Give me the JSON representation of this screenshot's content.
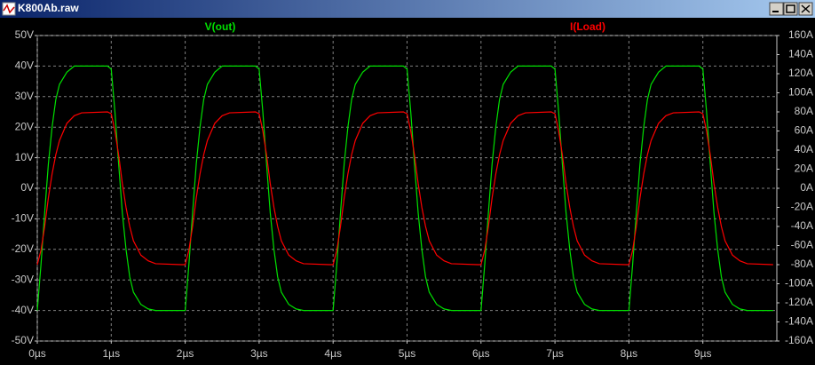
{
  "window": {
    "title": "K800Ab.raw"
  },
  "chart_data": {
    "type": "line",
    "x": [
      0,
      0.05,
      0.1,
      0.15,
      0.2,
      0.25,
      0.3,
      0.4,
      0.5,
      0.6,
      0.95,
      1,
      1.05,
      1.1,
      1.15,
      1.2,
      1.25,
      1.3,
      1.4,
      1.5,
      1.6,
      1.95,
      2,
      2.05,
      2.1,
      2.15,
      2.2,
      2.25,
      2.3,
      2.4,
      2.5,
      2.6,
      2.95,
      3,
      3.05,
      3.1,
      3.15,
      3.2,
      3.25,
      3.3,
      3.4,
      3.5,
      3.6,
      3.95,
      4,
      4.05,
      4.1,
      4.15,
      4.2,
      4.25,
      4.3,
      4.4,
      4.5,
      4.6,
      4.95,
      5,
      5.05,
      5.1,
      5.15,
      5.2,
      5.25,
      5.3,
      5.4,
      5.5,
      5.6,
      5.95,
      6,
      6.05,
      6.1,
      6.15,
      6.2,
      6.25,
      6.3,
      6.4,
      6.5,
      6.6,
      6.95,
      7,
      7.05,
      7.1,
      7.15,
      7.2,
      7.25,
      7.3,
      7.4,
      7.5,
      7.6,
      7.95,
      8,
      8.05,
      8.1,
      8.15,
      8.2,
      8.25,
      8.3,
      8.4,
      8.5,
      8.6,
      8.95,
      9,
      9.05,
      9.1,
      9.15,
      9.2,
      9.25,
      9.3,
      9.4,
      9.5,
      9.6,
      9.95
    ],
    "series": [
      {
        "name": "V(out)",
        "color": "#00e000",
        "axis": "y",
        "values": [
          -40,
          -25,
          -8,
          8,
          20,
          29,
          34,
          38,
          40,
          40,
          40,
          39,
          25,
          8,
          -8,
          -20,
          -29,
          -34,
          -38,
          -39.5,
          -40,
          -40,
          -40,
          -25,
          -8,
          8,
          20,
          29,
          34,
          38,
          40,
          40,
          40,
          39,
          25,
          8,
          -8,
          -20,
          -29,
          -34,
          -38,
          -39.5,
          -40,
          -40,
          -40,
          -25,
          -8,
          8,
          20,
          29,
          34,
          38,
          40,
          40,
          40,
          39,
          25,
          8,
          -8,
          -20,
          -29,
          -34,
          -38,
          -39.5,
          -40,
          -40,
          -40,
          -25,
          -8,
          8,
          20,
          29,
          34,
          38,
          40,
          40,
          40,
          39,
          25,
          8,
          -8,
          -20,
          -29,
          -34,
          -38,
          -39.5,
          -40,
          -40,
          -40,
          -25,
          -8,
          8,
          20,
          29,
          34,
          38,
          40,
          40,
          40,
          39,
          25,
          8,
          -8,
          -20,
          -29,
          -34,
          -38,
          -39.5,
          -40,
          -40
        ]
      },
      {
        "name": "I(Load)",
        "color": "#ff0000",
        "axis": "y2",
        "values": [
          -80,
          -65,
          -40,
          -10,
          15,
          35,
          50,
          68,
          76,
          79,
          80,
          78,
          60,
          35,
          5,
          -20,
          -40,
          -55,
          -70,
          -76,
          -79,
          -80,
          -80,
          -65,
          -40,
          -10,
          15,
          35,
          50,
          68,
          76,
          79,
          80,
          78,
          60,
          35,
          5,
          -20,
          -40,
          -55,
          -70,
          -76,
          -79,
          -80,
          -80,
          -65,
          -40,
          -10,
          15,
          35,
          50,
          68,
          76,
          79,
          80,
          78,
          60,
          35,
          5,
          -20,
          -40,
          -55,
          -70,
          -76,
          -79,
          -80,
          -80,
          -65,
          -40,
          -10,
          15,
          35,
          50,
          68,
          76,
          79,
          80,
          78,
          60,
          35,
          5,
          -20,
          -40,
          -55,
          -70,
          -76,
          -79,
          -80,
          -80,
          -65,
          -40,
          -10,
          15,
          35,
          50,
          68,
          76,
          79,
          80,
          78,
          60,
          35,
          5,
          -20,
          -40,
          -55,
          -70,
          -76,
          -79,
          -80
        ]
      }
    ],
    "xlim": [
      0,
      10
    ],
    "xticks": [
      {
        "value": 0,
        "label": "0µs"
      },
      {
        "value": 1,
        "label": "1µs"
      },
      {
        "value": 2,
        "label": "2µs"
      },
      {
        "value": 3,
        "label": "3µs"
      },
      {
        "value": 4,
        "label": "4µs"
      },
      {
        "value": 5,
        "label": "5µs"
      },
      {
        "value": 6,
        "label": "6µs"
      },
      {
        "value": 7,
        "label": "7µs"
      },
      {
        "value": 8,
        "label": "8µs"
      },
      {
        "value": 9,
        "label": "9µs"
      }
    ],
    "ylim": [
      -50,
      50
    ],
    "yticks": [
      {
        "value": 50,
        "label": "50V"
      },
      {
        "value": 40,
        "label": "40V"
      },
      {
        "value": 30,
        "label": "30V"
      },
      {
        "value": 20,
        "label": "20V"
      },
      {
        "value": 10,
        "label": "10V"
      },
      {
        "value": 0,
        "label": "0V"
      },
      {
        "value": -10,
        "label": "-10V"
      },
      {
        "value": -20,
        "label": "-20V"
      },
      {
        "value": -30,
        "label": "-30V"
      },
      {
        "value": -40,
        "label": "-40V"
      },
      {
        "value": -50,
        "label": "-50V"
      }
    ],
    "y2lim": [
      -160,
      160
    ],
    "y2ticks": [
      {
        "value": 160,
        "label": "160A"
      },
      {
        "value": 140,
        "label": "140A"
      },
      {
        "value": 120,
        "label": "120A"
      },
      {
        "value": 100,
        "label": "100A"
      },
      {
        "value": 80,
        "label": "80A"
      },
      {
        "value": 60,
        "label": "60A"
      },
      {
        "value": 40,
        "label": "40A"
      },
      {
        "value": 20,
        "label": "20A"
      },
      {
        "value": 0,
        "label": "0A"
      },
      {
        "value": -20,
        "label": "-20A"
      },
      {
        "value": -40,
        "label": "-40A"
      },
      {
        "value": -60,
        "label": "-60A"
      },
      {
        "value": -80,
        "label": "-80A"
      },
      {
        "value": -100,
        "label": "-100A"
      },
      {
        "value": -120,
        "label": "-120A"
      },
      {
        "value": -140,
        "label": "-140A"
      },
      {
        "value": -160,
        "label": "-160A"
      }
    ],
    "grid": true
  }
}
